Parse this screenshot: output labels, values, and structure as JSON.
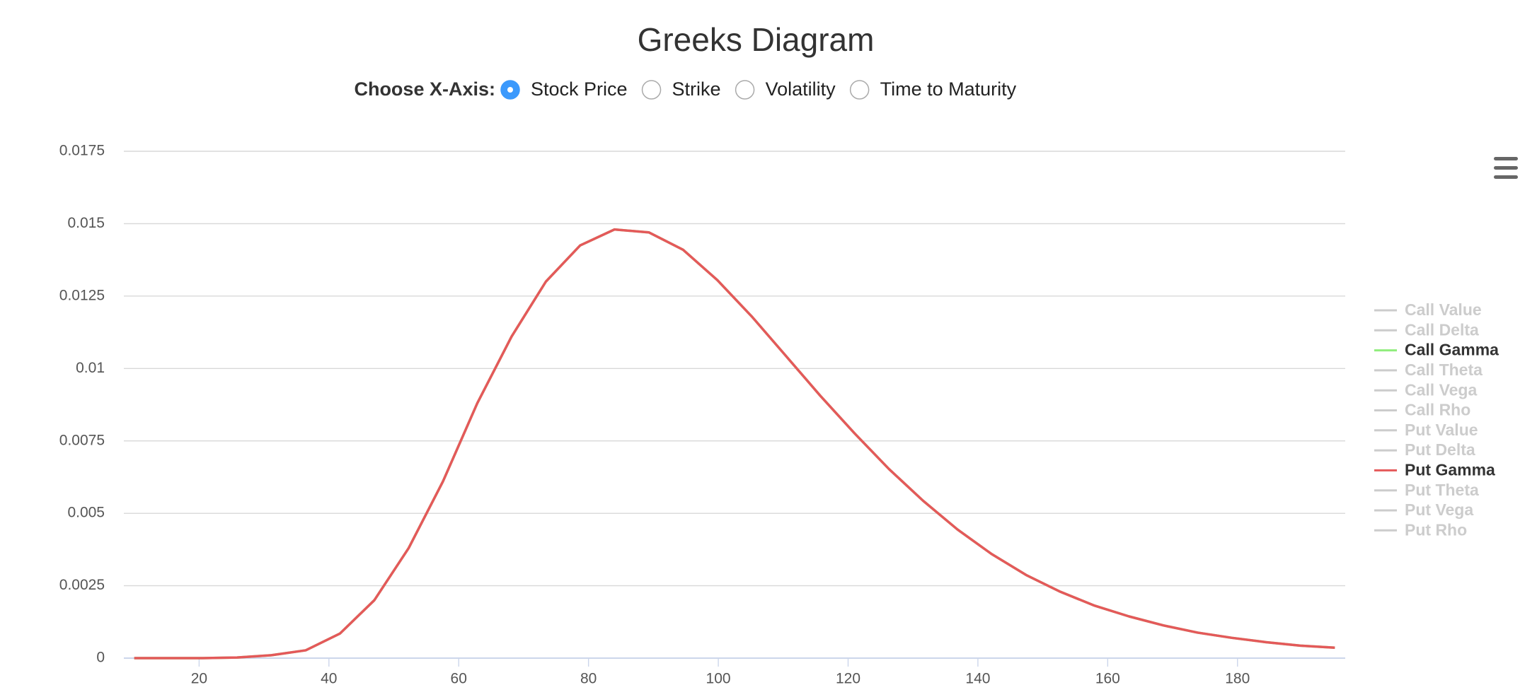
{
  "controls": {
    "label": "Choose X-Axis:",
    "options": [
      "Stock Price",
      "Strike",
      "Volatility",
      "Time to Maturity"
    ],
    "selected": 0
  },
  "chart_data": {
    "type": "line",
    "title": "Greeks Diagram",
    "x": [
      10,
      15.29,
      20.57,
      25.86,
      31.14,
      36.43,
      41.71,
      47,
      52.29,
      57.57,
      62.86,
      68.14,
      73.43,
      78.71,
      84,
      89.29,
      94.57,
      99.86,
      105.14,
      110.43,
      115.71,
      121,
      126.29,
      131.57,
      136.86,
      142.14,
      147.43,
      152.71,
      158,
      163.29,
      168.57,
      173.86,
      179.14,
      184.43,
      189.71,
      195
    ],
    "series": [
      {
        "name": "Call Value",
        "color": "#cccccc",
        "visible": false
      },
      {
        "name": "Call Delta",
        "color": "#cccccc",
        "visible": false
      },
      {
        "name": "Call Gamma",
        "color": "#90ed7d",
        "visible": true,
        "values": [
          0,
          0,
          0,
          2e-05,
          0.0001,
          0.00027,
          0.00085,
          0.002,
          0.0038,
          0.0061,
          0.0088,
          0.0111,
          0.013,
          0.01425,
          0.0148,
          0.0147,
          0.0141,
          0.01305,
          0.0118,
          0.01043,
          0.00906,
          0.00776,
          0.00653,
          0.00543,
          0.00444,
          0.00359,
          0.00287,
          0.00229,
          0.00181,
          0.00144,
          0.00113,
          0.00088,
          0.0007,
          0.00055,
          0.00043,
          0.00036
        ]
      },
      {
        "name": "Call Theta",
        "color": "#cccccc",
        "visible": false
      },
      {
        "name": "Call Vega",
        "color": "#cccccc",
        "visible": false
      },
      {
        "name": "Call Rho",
        "color": "#cccccc",
        "visible": false
      },
      {
        "name": "Put Value",
        "color": "#cccccc",
        "visible": false
      },
      {
        "name": "Put Delta",
        "color": "#cccccc",
        "visible": false
      },
      {
        "name": "Put Gamma",
        "color": "#e4595a",
        "visible": true,
        "values": [
          0,
          0,
          0,
          2e-05,
          0.0001,
          0.00027,
          0.00085,
          0.002,
          0.0038,
          0.0061,
          0.0088,
          0.0111,
          0.013,
          0.01425,
          0.0148,
          0.0147,
          0.0141,
          0.01305,
          0.0118,
          0.01043,
          0.00906,
          0.00776,
          0.00653,
          0.00543,
          0.00444,
          0.00359,
          0.00287,
          0.00229,
          0.00181,
          0.00144,
          0.00113,
          0.00088,
          0.0007,
          0.00055,
          0.00043,
          0.00036
        ]
      },
      {
        "name": "Put Theta",
        "color": "#cccccc",
        "visible": false
      },
      {
        "name": "Put Vega",
        "color": "#cccccc",
        "visible": false
      },
      {
        "name": "Put Rho",
        "color": "#cccccc",
        "visible": false
      }
    ],
    "xlim": [
      8.4,
      196.6
    ],
    "xticks": [
      20,
      40,
      60,
      80,
      100,
      120,
      140,
      160,
      180
    ],
    "ylim": [
      0,
      0.0175
    ],
    "yticks": [
      0,
      0.0025,
      0.005,
      0.0075,
      0.01,
      0.0125,
      0.015,
      0.0175
    ],
    "grid": true,
    "legend": "right"
  }
}
